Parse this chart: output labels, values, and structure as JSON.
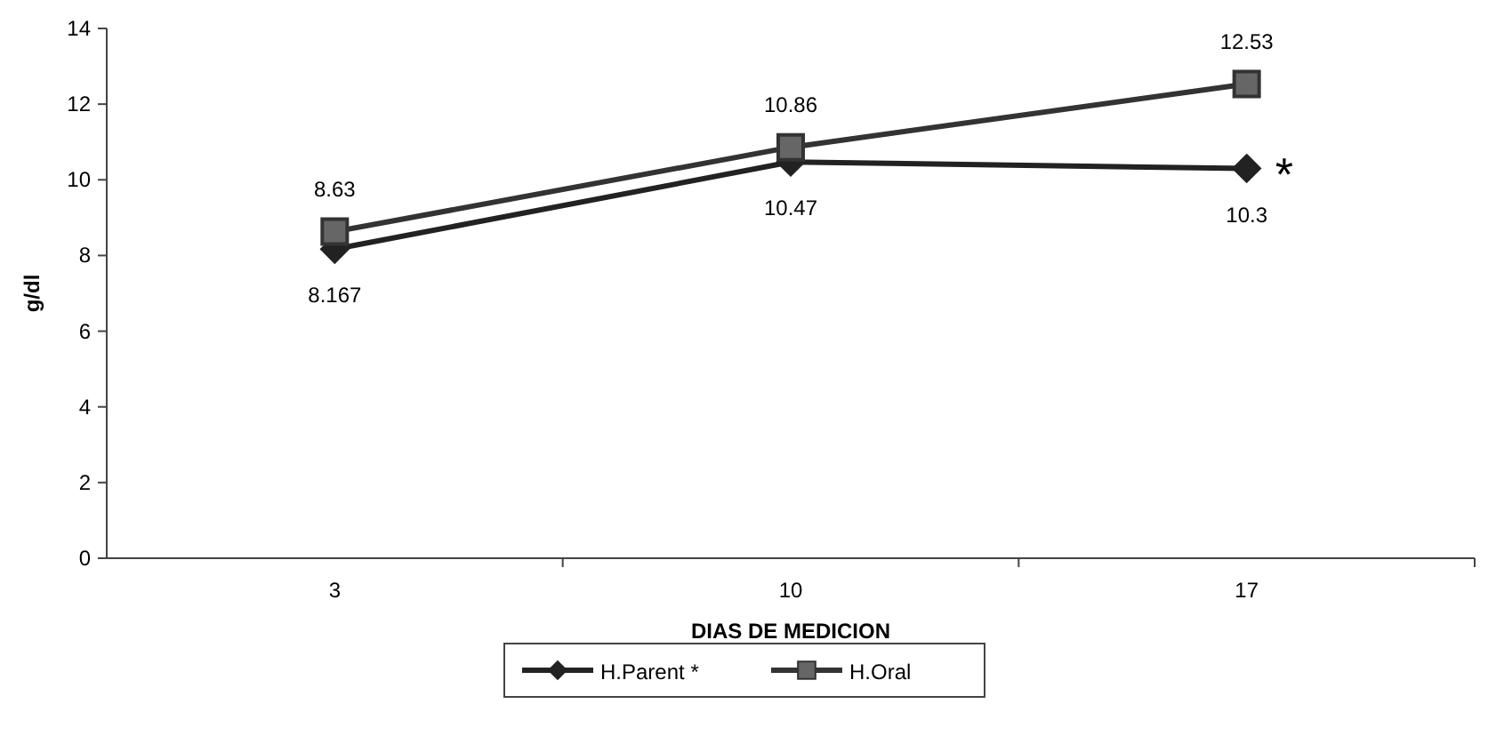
{
  "chart_data": {
    "type": "line",
    "xlabel": "DIAS DE MEDICION",
    "ylabel": "g/dl",
    "categories": [
      "3",
      "10",
      "17"
    ],
    "series": [
      {
        "name": "H.Parent *",
        "color": "#222222",
        "marker": "diamond",
        "values": [
          8.167,
          10.47,
          10.3
        ]
      },
      {
        "name": "H.Oral",
        "color": "#333333",
        "marker": "square",
        "values": [
          8.63,
          10.86,
          12.53
        ]
      }
    ],
    "ylim": [
      0,
      14
    ],
    "yticks": [
      0,
      2,
      4,
      6,
      8,
      10,
      12,
      14
    ],
    "data_labels": true,
    "legend": "bottom",
    "grid": false,
    "annotations": [
      {
        "text": "*",
        "x": "17",
        "y": 10.3
      }
    ]
  }
}
